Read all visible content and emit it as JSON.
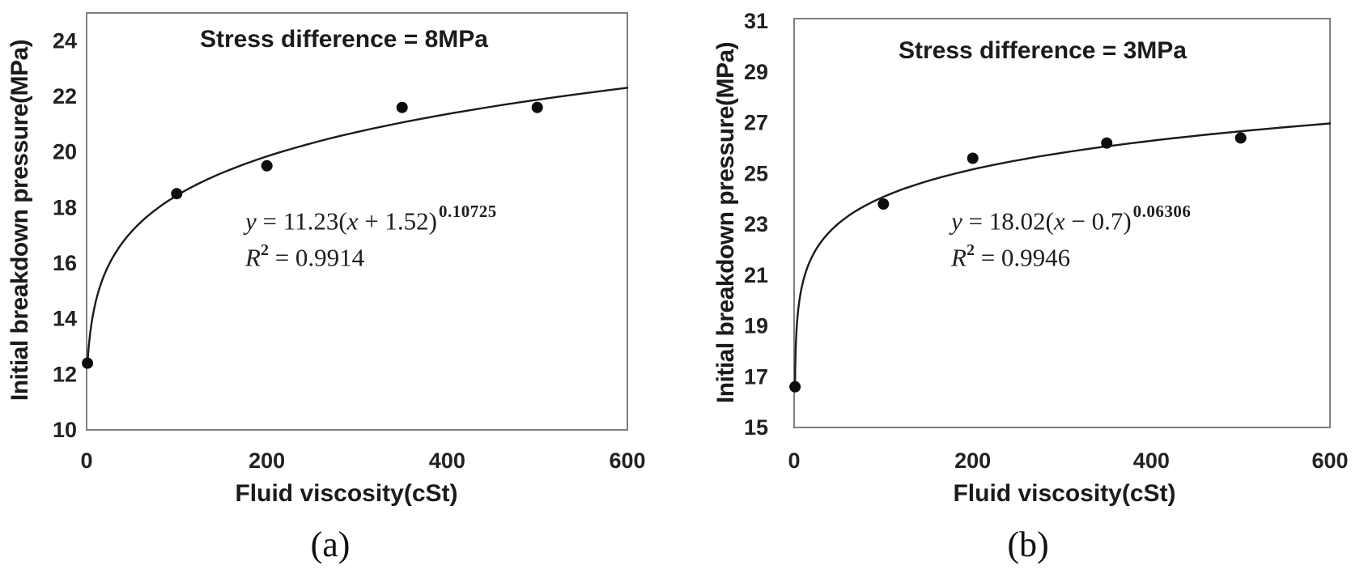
{
  "figure": {
    "background": "#ffffff",
    "text_color": "#1b1b1b",
    "frame_color": "#7f7f7f",
    "curve_color": "#1a1a1a",
    "point_color": "#0d0d0d"
  },
  "chart_data": [
    {
      "id": "a",
      "type": "scatter",
      "caption": "(a)",
      "annotation": "Stress difference = 8MPa",
      "xlabel": "Fluid viscosity(cSt)",
      "ylabel": "Initial breakdown pressure(MPa)",
      "xlim": [
        0,
        600
      ],
      "ylim": [
        10,
        25
      ],
      "xticks": [
        0,
        200,
        400,
        600
      ],
      "yticks": [
        10,
        12,
        14,
        16,
        18,
        20,
        22,
        24
      ],
      "grid": false,
      "legend": "none",
      "points": [
        {
          "x": 1,
          "y": 12.4
        },
        {
          "x": 100,
          "y": 18.5
        },
        {
          "x": 200,
          "y": 19.5
        },
        {
          "x": 350,
          "y": 21.6
        },
        {
          "x": 500,
          "y": 21.6
        }
      ],
      "fit": {
        "form": "y = a(x + b)^n",
        "a": 11.23,
        "b": 1.52,
        "n": 0.10725,
        "r2": 0.9914,
        "domain": [
          1,
          600
        ]
      },
      "equation": {
        "lhs": "y",
        "mid": " = 11.23(",
        "xvar": "x",
        "tail": " + 1.52)",
        "exponent": "0.10725",
        "r": "R",
        "r_exp": "2",
        "r_value": " = 0.9914"
      }
    },
    {
      "id": "b",
      "type": "scatter",
      "caption": "(b)",
      "annotation": "Stress difference = 3MPa",
      "xlabel": "Fluid viscosity(cSt)",
      "ylabel": "Initial breakdown pressure(MPa)",
      "xlim": [
        0,
        600
      ],
      "ylim": [
        15,
        31.1
      ],
      "xticks": [
        0,
        200,
        400,
        600
      ],
      "yticks": [
        15,
        17,
        19,
        21,
        23,
        25,
        27,
        29,
        31
      ],
      "grid": false,
      "legend": "none",
      "points": [
        {
          "x": 1,
          "y": 16.6
        },
        {
          "x": 100,
          "y": 23.8
        },
        {
          "x": 200,
          "y": 25.6
        },
        {
          "x": 350,
          "y": 26.2
        },
        {
          "x": 500,
          "y": 26.4
        }
      ],
      "fit": {
        "form": "y = a(x + b)^n",
        "a": 18.02,
        "b": -0.7,
        "n": 0.06306,
        "r2": 0.9946,
        "domain": [
          1,
          600
        ]
      },
      "equation": {
        "lhs": "y",
        "mid": " = 18.02(",
        "xvar": "x",
        "tail": " − 0.7)",
        "exponent": "0.06306",
        "r": "R",
        "r_exp": "2",
        "r_value": " = 0.9946"
      }
    }
  ]
}
